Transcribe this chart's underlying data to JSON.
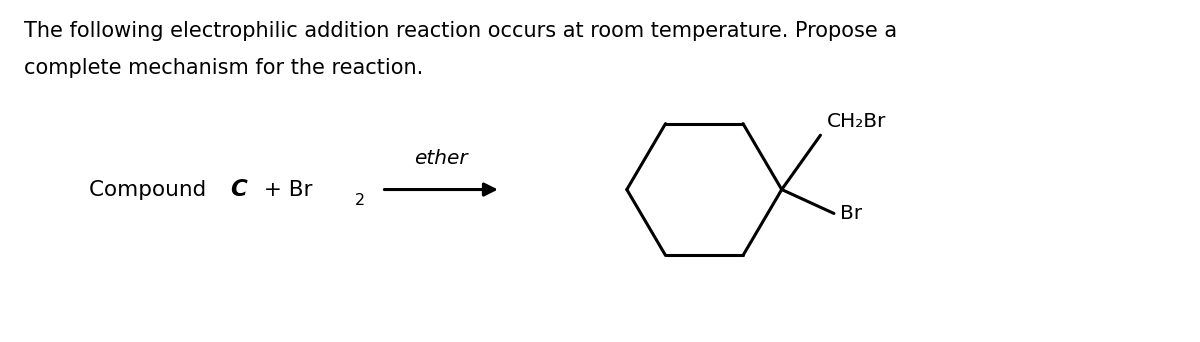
{
  "title_line1": "The following electrophilic addition reaction occurs at room temperature. Propose a",
  "title_line2": "complete mechanism for the reaction.",
  "arrow_label": "ether",
  "ch2br_label": "CH₂Br",
  "br_label": "Br",
  "bg_color": "#ffffff",
  "text_color": "#000000",
  "font_size_title": 15.0,
  "font_size_chem": 15.5,
  "font_size_label": 14.5,
  "font_size_sub": 11.5,
  "lw": 2.2,
  "fig_width": 12.0,
  "fig_height": 3.42,
  "dpi": 100
}
